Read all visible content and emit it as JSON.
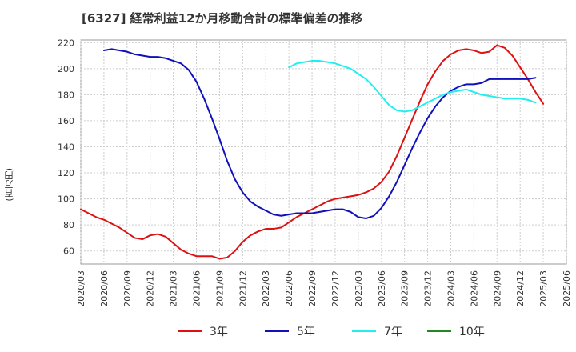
{
  "chart_data": {
    "type": "line",
    "title": "[6327]  経常利益12か月移動合計の標準偏差の推移",
    "ylabel": "(百万円)",
    "xlabel": "",
    "ylim": [
      50,
      222
    ],
    "y_ticks": [
      60,
      80,
      100,
      120,
      140,
      160,
      180,
      200,
      220
    ],
    "x_ticks": [
      "2020/03",
      "2020/06",
      "2020/09",
      "2020/12",
      "2021/03",
      "2021/06",
      "2021/09",
      "2021/12",
      "2022/03",
      "2022/06",
      "2022/09",
      "2022/12",
      "2023/03",
      "2023/06",
      "2023/09",
      "2023/12",
      "2024/03",
      "2024/06",
      "2024/09",
      "2024/12",
      "2025/03",
      "2025/06"
    ],
    "grid": true,
    "legend_position": "bottom",
    "series": [
      {
        "name": "3年",
        "color": "#dd1111",
        "start": "2020/03",
        "values": [
          92,
          89,
          86,
          84,
          81,
          78,
          74,
          70,
          69,
          72,
          73,
          71,
          66,
          61,
          58,
          56,
          56,
          56,
          54,
          55,
          60,
          67,
          72,
          75,
          77,
          77,
          78,
          82,
          86,
          89,
          92,
          95,
          98,
          100,
          101,
          102,
          103,
          105,
          108,
          113,
          121,
          133,
          147,
          161,
          175,
          188,
          198,
          206,
          211,
          214,
          215,
          214,
          212,
          213,
          218,
          216,
          210,
          201,
          192,
          182,
          173
        ]
      },
      {
        "name": "5年",
        "color": "#1111bb",
        "start": "2020/06",
        "values": [
          214,
          215,
          214,
          213,
          211,
          210,
          209,
          209,
          208,
          206,
          204,
          199,
          190,
          177,
          162,
          146,
          129,
          115,
          105,
          98,
          94,
          91,
          88,
          87,
          88,
          89,
          89,
          89,
          90,
          91,
          92,
          92,
          90,
          86,
          85,
          87,
          93,
          102,
          113,
          126,
          139,
          151,
          162,
          171,
          178,
          183,
          186,
          188,
          188,
          189,
          192,
          192,
          192,
          192,
          192,
          192,
          193
        ]
      },
      {
        "name": "7年",
        "color": "#22eeee",
        "start": "2022/06",
        "values": [
          201,
          204,
          205,
          206,
          206,
          205,
          204,
          202,
          200,
          196,
          192,
          186,
          179,
          172,
          168,
          167,
          168,
          171,
          174,
          177,
          180,
          182,
          183,
          184,
          182,
          180,
          179,
          178,
          177,
          177,
          177,
          176,
          174
        ]
      },
      {
        "name": "10年",
        "color": "#228822",
        "start": "2020/03",
        "values": []
      }
    ]
  }
}
